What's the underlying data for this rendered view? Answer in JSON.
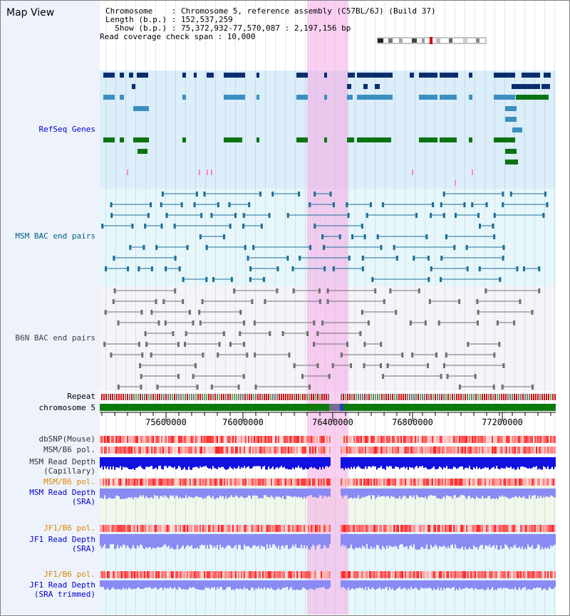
{
  "view_title": "Map View",
  "header_lines": [
    "Chromosome    : Chromosome 5, reference assembly (C57BL/6J) (Build 37)",
    "Length (b.p.) : 152,537,259",
    "  Show (b.p.) : 75,372,932-77,570,087 : 2,197,156 bp",
    "Read coverage check span : 10,000"
  ],
  "tracks": {
    "refseq": "RefSeq Genes",
    "msm_bac": "MSM BAC end pairs",
    "b6n_bac": "B6N BAC end pairs",
    "repeat": "Repeat",
    "chromosome": "chromosome 5",
    "dbsnp": "dbSNP(Mouse)",
    "msm_pol": "MSM/B6 pol.",
    "msm_depth_cap_1": "MSM Read Depth",
    "msm_depth_cap_2": "(Capillary)",
    "msm_pol2": "MSM/B6 pol.",
    "msm_depth_sra_1": "MSM Read Depth",
    "msm_depth_sra_2": "(SRA)",
    "jf1_pol": "JF1/B6 pol.",
    "jf1_depth_sra_1": "JF1 Read Depth",
    "jf1_depth_sra_2": "(SRA)",
    "jf1_pol2": "JF1/B6 pol.",
    "jf1_depth_trim_1": "JF1 Read Depth",
    "jf1_depth_trim_2": "(SRA trimmed)"
  },
  "axis_ticks": [
    "75600000",
    "76000000",
    "76400000",
    "76800000",
    "77200000"
  ],
  "colors": {
    "refseq_dark": "#0a2d6e",
    "refseq_mid": "#3a8fc0",
    "refseq_green": "#0b7312",
    "chromosome_bar": "#0b7a0b",
    "highlight": "#f5aae6",
    "msm_depth": "#1010e0",
    "sra_depth": "#8a8af4",
    "pol_red": "#ee3333"
  }
}
